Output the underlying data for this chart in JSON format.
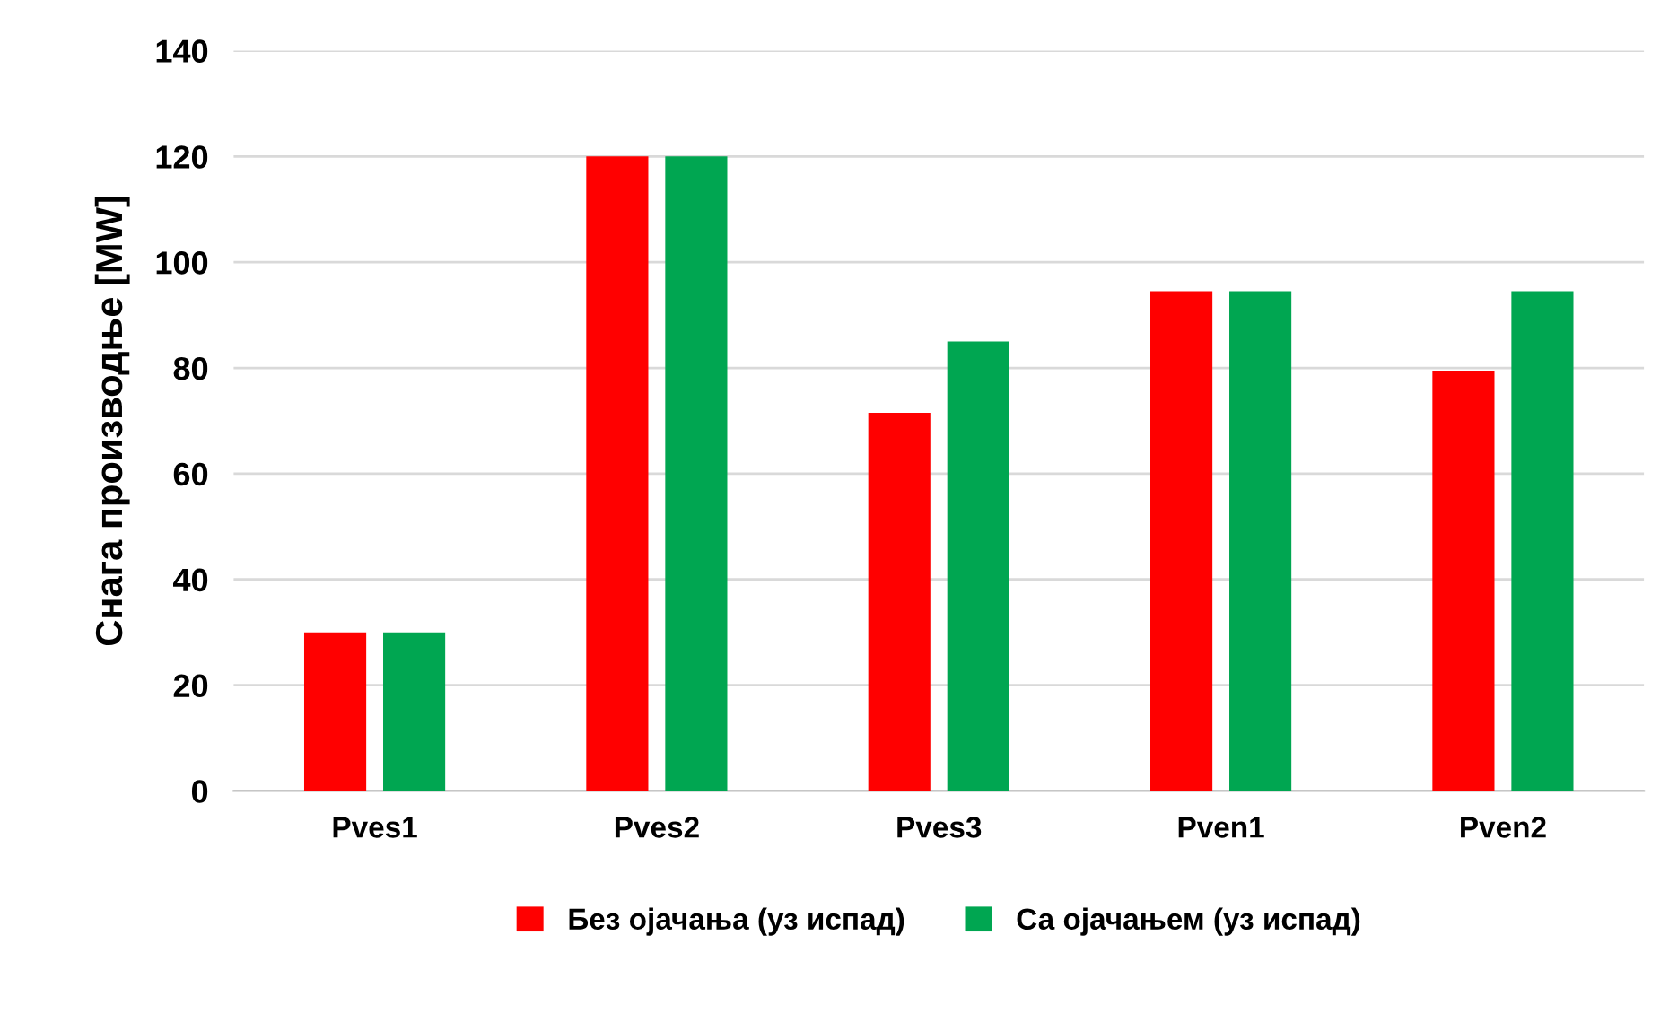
{
  "chart_data": {
    "type": "bar",
    "ylabel": "Снага производње [MW]",
    "categories": [
      "Pves1",
      "Pves2",
      "Pves3",
      "Pven1",
      "Pven2"
    ],
    "series": [
      {
        "name": "Без ојачања (уз испад)",
        "color": "#ff0000",
        "values": [
          30,
          120,
          71.5,
          94.5,
          79.5
        ]
      },
      {
        "name": "Са ојачањем (уз испад)",
        "color": "#00a651",
        "values": [
          30,
          120,
          85,
          94.5,
          94.5
        ]
      }
    ],
    "ylim": [
      0,
      140
    ],
    "yticks": [
      0,
      20,
      40,
      60,
      80,
      100,
      120,
      140
    ],
    "grid": "y",
    "legend": "bottom"
  }
}
